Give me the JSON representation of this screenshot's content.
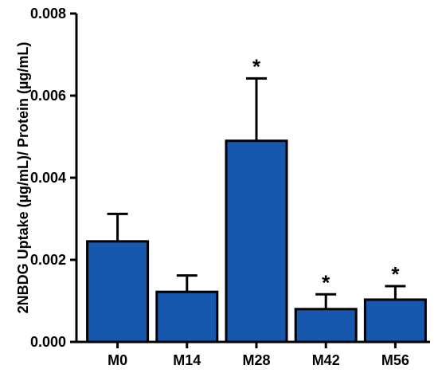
{
  "chart_data": {
    "type": "bar",
    "title": "",
    "xlabel": "",
    "ylabel": "2NBDG Uptake (µg/mL)/ Protein (µg/mL)",
    "ylim": [
      0,
      0.008
    ],
    "yticks": [
      "0.000",
      "0.002",
      "0.004",
      "0.006",
      "0.008"
    ],
    "categories": [
      "M0",
      "M14",
      "M28",
      "M42",
      "M56"
    ],
    "values": [
      0.00245,
      0.00122,
      0.0049,
      0.0008,
      0.00103
    ],
    "error_upper": [
      0.00312,
      0.00162,
      0.00642,
      0.00116,
      0.00136
    ],
    "significance": [
      "",
      "",
      "*",
      "*",
      "*"
    ],
    "bar_color": "#1757ad",
    "bar_edge_color": "#000000",
    "grid": false
  }
}
